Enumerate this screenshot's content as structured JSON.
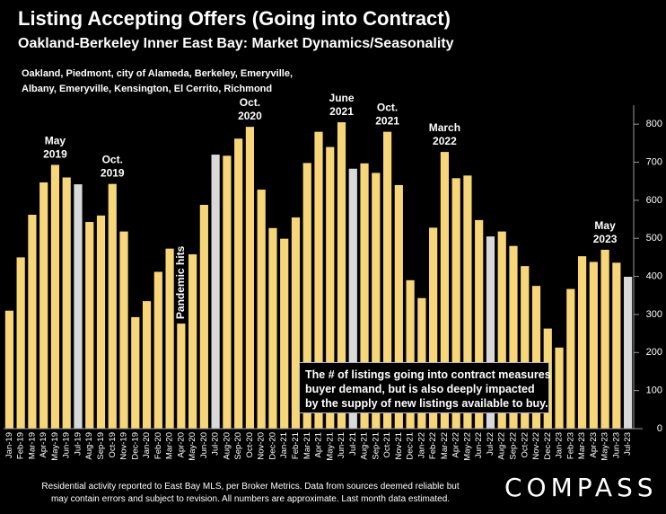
{
  "title": "Listing Accepting Offers (Going into Contract)",
  "subtitle": "Oakland-Berkeley Inner East Bay: Market Dynamics/Seasonality",
  "area_note": {
    "line1": "Oakland, Piedmont, city of Alameda, Berkeley, Emeryville,",
    "line2": "Albany, Emeryville, Kensington, El Cerrito, Richmond"
  },
  "callout": {
    "line1": "The # of listings going into contract measures",
    "line2": "buyer demand, but is also deeply impacted",
    "line3": "by the supply of new listings available to buy."
  },
  "footer": {
    "line1": "Residential activity reported to East Bay MLS, per Broker Metrics. Data from sources deemed reliable but",
    "line2": "may contain errors and subject to revision. All numbers are approximate. Last month data estimated."
  },
  "logo": "COMPASS",
  "colors": {
    "bar": "#F7D67A",
    "highlight": "#D9D9D9",
    "background": "#000000",
    "text": "#FFFFFF"
  },
  "chart_data": {
    "type": "bar",
    "title": "Listing Accepting Offers (Going into Contract)",
    "subtitle": "Oakland-Berkeley Inner East Bay: Market Dynamics/Seasonality",
    "xlabel": "",
    "ylabel": "",
    "ylim": [
      0,
      850
    ],
    "yticks": [
      0,
      100,
      200,
      300,
      400,
      500,
      600,
      700,
      800
    ],
    "y_axis_position": "right",
    "grid": false,
    "categories": [
      "Jan-19",
      "Feb-19",
      "Mar-19",
      "Apr-19",
      "May-19",
      "Jun-19",
      "Jul-19",
      "Aug-19",
      "Sep-19",
      "Oct-19",
      "Nov-19",
      "Dec-19",
      "Jan-20",
      "Feb-20",
      "Mar-20",
      "Apr-20",
      "May-20",
      "Jun-20",
      "Jul-20",
      "Aug-20",
      "Sep-20",
      "Oct-20",
      "Nov-20",
      "Dec-20",
      "Jan-21",
      "Feb-21",
      "Mar-21",
      "Apr-21",
      "May-21",
      "Jun-21",
      "Jul-21",
      "Aug-21",
      "Sep-21",
      "Oct-21",
      "Nov-21",
      "Dec-21",
      "Jan-22",
      "Feb-22",
      "Mar-22",
      "Apr-22",
      "May-22",
      "Jun-22",
      "Jul-22",
      "Aug-22",
      "Sep-22",
      "Oct-22",
      "Nov-22",
      "Dec-22",
      "Jan-23",
      "Feb-23",
      "Mar-23",
      "Apr-23",
      "May-23",
      "Jun-23",
      "Jul-23"
    ],
    "values": [
      310,
      450,
      562,
      647,
      693,
      660,
      642,
      543,
      560,
      643,
      518,
      293,
      335,
      412,
      473,
      276,
      458,
      588,
      720,
      717,
      762,
      793,
      628,
      527,
      499,
      555,
      698,
      780,
      740,
      805,
      683,
      697,
      672,
      780,
      640,
      390,
      343,
      528,
      727,
      658,
      665,
      548,
      505,
      518,
      480,
      427,
      375,
      263,
      213,
      367,
      453,
      438,
      470,
      436,
      399
    ],
    "highlight_categories": [
      "Jul-19",
      "Jul-20",
      "Jul-21",
      "Jul-22",
      "Jul-23"
    ],
    "annotations": [
      {
        "lines": [
          "May",
          "2019"
        ],
        "category": "May-19"
      },
      {
        "lines": [
          "Oct.",
          "2019"
        ],
        "category": "Oct-19"
      },
      {
        "lines": [
          "Pandemic hits"
        ],
        "category": "Apr-20",
        "rotated": true
      },
      {
        "lines": [
          "Oct.",
          "2020"
        ],
        "category": "Oct-20"
      },
      {
        "lines": [
          "June",
          "2021"
        ],
        "category": "Jun-21"
      },
      {
        "lines": [
          "Oct.",
          "2021"
        ],
        "category": "Oct-21"
      },
      {
        "lines": [
          "March",
          "2022"
        ],
        "category": "Mar-22"
      },
      {
        "lines": [
          "May",
          "2023"
        ],
        "category": "May-23"
      }
    ]
  }
}
